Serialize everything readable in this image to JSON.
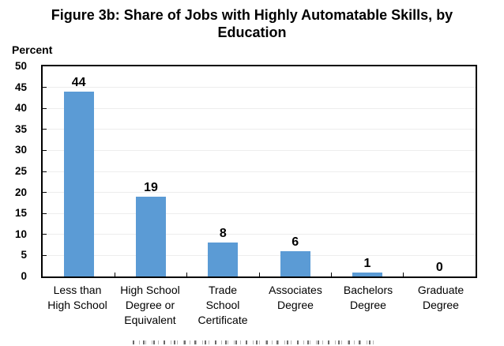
{
  "header": {
    "title_display": "Figure 3b: Share of Jobs with Highly Automatable Skills, by\nEducation"
  },
  "chart_data": {
    "type": "bar",
    "title": "Figure 3b: Share of Jobs with Highly Automatable Skills, by Education",
    "ylabel": "Percent",
    "xlabel": "",
    "categories": [
      "Less than High School",
      "High School Degree or Equivalent",
      "Trade School Certificate",
      "Associates Degree",
      "Bachelors Degree",
      "Graduate Degree"
    ],
    "categories_display": [
      "Less than\nHigh School",
      "High School\nDegree or\nEquivalent",
      "Trade\nSchool\nCertificate",
      "Associates\nDegree",
      "Bachelors\nDegree",
      "Graduate\nDegree"
    ],
    "values": [
      44,
      19,
      8,
      6,
      1,
      0
    ],
    "ylim": [
      0,
      50
    ],
    "ytick_step": 5,
    "grid": true,
    "legend_position": "none",
    "bar_color": "#5B9BD5",
    "axis_color": "#000000",
    "gridline_color": "#EDEDED"
  }
}
